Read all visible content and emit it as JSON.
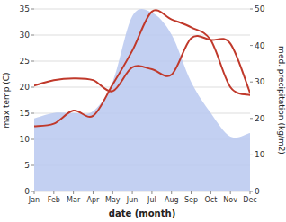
{
  "chart_data": {
    "type": "line",
    "categories": [
      "Jan",
      "Feb",
      "Mar",
      "Apr",
      "May",
      "Jun",
      "Jul",
      "Aug",
      "Sep",
      "Oct",
      "Nov",
      "Dec"
    ],
    "xlabel": "date (month)",
    "ylabel": "max temp (C)",
    "y2label": "med. precipitation (kg/m2)",
    "ylim": [
      0,
      35
    ],
    "yticks": [
      0,
      5,
      10,
      15,
      20,
      25,
      30,
      35
    ],
    "y2lim": [
      0,
      50
    ],
    "y2ticks": [
      0,
      10,
      20,
      30,
      40,
      50
    ],
    "grid": true,
    "series": [
      {
        "type": "area",
        "axis": "y2",
        "color": "#b8c8f0",
        "values": [
          20.0,
          21.5,
          21.5,
          22.0,
          30.0,
          48.0,
          49.0,
          43.0,
          30.0,
          21.5,
          15.0,
          16.0
        ]
      },
      {
        "type": "line",
        "color": "#c0392b",
        "values": [
          12.5,
          13.0,
          15.5,
          14.5,
          20.5,
          27.0,
          34.5,
          33.0,
          31.5,
          29.0,
          20.0,
          18.5
        ]
      },
      {
        "type": "line",
        "axis": "y2",
        "color": "#c0392b",
        "values": [
          29.0,
          30.5,
          31.0,
          30.5,
          27.5,
          34.0,
          33.5,
          32.0,
          42.0,
          41.5,
          40.5,
          27.0
        ]
      }
    ]
  }
}
